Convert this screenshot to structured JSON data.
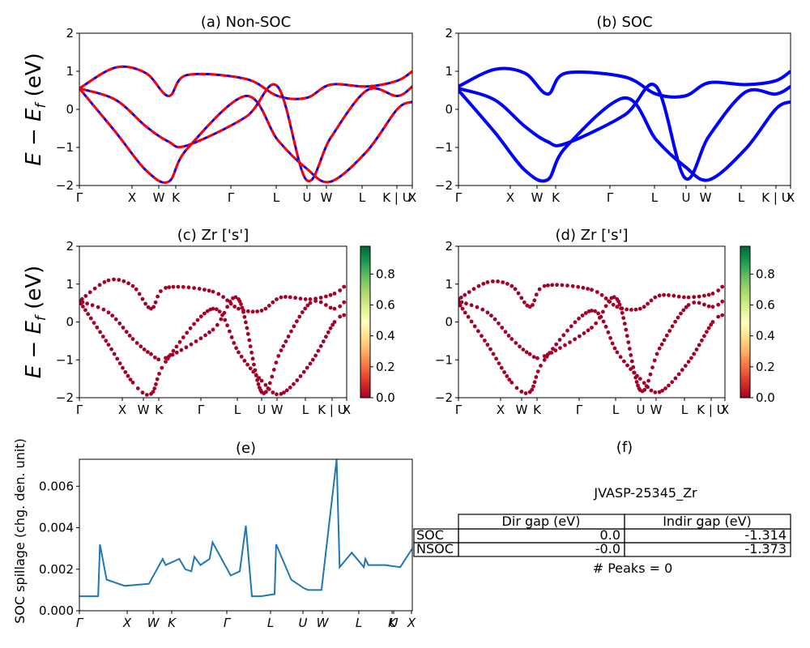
{
  "colors": {
    "nonsoc_solid": "#0000ff",
    "nonsoc_dash": "#ff0000",
    "soc": "#0000ff",
    "proj_points": "#a50026",
    "spillage": "#1f77b4"
  },
  "kpath": {
    "labels": [
      "Γ",
      "X",
      "W",
      "K",
      "Γ",
      "L",
      "U",
      "W",
      "L",
      "K | U",
      "X"
    ]
  },
  "chart_data": [
    {
      "type": "line",
      "title": "(a) Non-SOC",
      "ylabel": "E − E_f (eV)",
      "ylabel_main": "E − E",
      "ylabel_sub": "f",
      "ylabel_unit": "(eV)",
      "ylim": [
        -2,
        2
      ],
      "yticks": [
        "−2",
        "−1",
        "0",
        "1",
        "2"
      ],
      "xtick_labels": [
        "Γ",
        "X",
        "W",
        "K",
        "Γ",
        "L",
        "U",
        "W",
        "L",
        "K | U",
        "X"
      ],
      "x": [
        0,
        1.2,
        2.2,
        2.95,
        3.55,
        5.5,
        6.55,
        7.5,
        8.3,
        9.5,
        10.5,
        11.0
      ],
      "series": [
        {
          "values": [
            0.55,
            1.1,
            0.95,
            0.35,
            0.9,
            0.8,
            0.35,
            0.3,
            0.65,
            0.6,
            0.75,
            1.0
          ]
        },
        {
          "values": [
            0.55,
            -0.6,
            -1.6,
            -1.9,
            -1.05,
            0.35,
            -0.8,
            -1.55,
            -1.9,
            -1.1,
            0.0,
            0.2
          ]
        },
        {
          "values": [
            0.55,
            0.25,
            -0.45,
            -0.85,
            -0.95,
            -0.2,
            0.6,
            -1.85,
            -0.75,
            0.5,
            0.35,
            0.6
          ]
        }
      ]
    },
    {
      "type": "line",
      "title": "(b) SOC",
      "ylim": [
        -2,
        2
      ],
      "yticks": [
        "−2",
        "−1",
        "0",
        "1",
        "2"
      ],
      "xtick_labels": [
        "Γ",
        "X",
        "W",
        "K",
        "Γ",
        "L",
        "U",
        "W",
        "L",
        "K | U",
        "X"
      ],
      "x": [
        0,
        1.2,
        2.2,
        2.95,
        3.55,
        5.5,
        6.55,
        7.5,
        8.3,
        9.5,
        10.5,
        11.0
      ],
      "series": [
        {
          "values": [
            0.6,
            1.05,
            0.95,
            0.4,
            0.95,
            0.85,
            0.4,
            0.35,
            0.7,
            0.65,
            0.75,
            1.0
          ]
        },
        {
          "values": [
            0.5,
            -0.6,
            -1.6,
            -1.85,
            -1.0,
            0.3,
            -0.8,
            -1.5,
            -1.85,
            -1.05,
            0.0,
            0.2
          ]
        },
        {
          "values": [
            0.55,
            0.25,
            -0.45,
            -0.85,
            -0.9,
            -0.15,
            0.6,
            -1.8,
            -0.7,
            0.45,
            0.4,
            0.6
          ]
        }
      ]
    },
    {
      "type": "scatter",
      "title": "(c)  Zr ['s']",
      "ylabel": "E − E_f (eV)",
      "ylabel_main": "E − E",
      "ylabel_sub": "f",
      "ylabel_unit": "(eV)",
      "ylim": [
        -2,
        2
      ],
      "yticks": [
        "−2",
        "−1",
        "0",
        "1",
        "2"
      ],
      "xtick_labels": [
        "Γ",
        "X",
        "W",
        "K",
        "Γ",
        "L",
        "U",
        "W",
        "L",
        "K | U",
        "X"
      ],
      "colorbar": {
        "ticks": [
          "0.0",
          "0.2",
          "0.4",
          "0.6",
          "0.8"
        ],
        "range": [
          0,
          0.98
        ]
      },
      "x": [
        0,
        1.2,
        2.2,
        2.95,
        3.55,
        5.5,
        6.55,
        7.5,
        8.3,
        9.5,
        10.5,
        11.0
      ],
      "series": [
        {
          "values": [
            0.55,
            1.1,
            0.95,
            0.35,
            0.9,
            0.8,
            0.35,
            0.3,
            0.65,
            0.6,
            0.75,
            1.0
          ]
        },
        {
          "values": [
            0.55,
            -0.6,
            -1.6,
            -1.9,
            -1.05,
            0.35,
            -0.8,
            -1.55,
            -1.9,
            -1.1,
            0.0,
            0.2
          ]
        },
        {
          "values": [
            0.55,
            0.25,
            -0.45,
            -0.85,
            -0.95,
            -0.2,
            0.6,
            -1.85,
            -0.75,
            0.5,
            0.35,
            0.6
          ]
        }
      ]
    },
    {
      "type": "scatter",
      "title": "(d) Zr ['s']",
      "ylim": [
        -2,
        2
      ],
      "yticks": [
        "−2",
        "−1",
        "0",
        "1",
        "2"
      ],
      "xtick_labels": [
        "Γ",
        "X",
        "W",
        "K",
        "Γ",
        "L",
        "U",
        "W",
        "L",
        "K | U",
        "X"
      ],
      "colorbar": {
        "ticks": [
          "0.0",
          "0.2",
          "0.4",
          "0.6",
          "0.8"
        ],
        "range": [
          0,
          0.98
        ]
      },
      "x": [
        0,
        1.2,
        2.2,
        2.95,
        3.55,
        5.5,
        6.55,
        7.5,
        8.3,
        9.5,
        10.5,
        11.0
      ],
      "series": [
        {
          "values": [
            0.6,
            1.05,
            0.95,
            0.4,
            0.95,
            0.85,
            0.4,
            0.35,
            0.7,
            0.65,
            0.75,
            1.0
          ]
        },
        {
          "values": [
            0.5,
            -0.6,
            -1.6,
            -1.85,
            -1.0,
            0.3,
            -0.8,
            -1.5,
            -1.85,
            -1.05,
            0.0,
            0.2
          ]
        },
        {
          "values": [
            0.55,
            0.25,
            -0.45,
            -0.85,
            -0.9,
            -0.15,
            0.6,
            -1.8,
            -0.7,
            0.45,
            0.4,
            0.6
          ]
        }
      ]
    },
    {
      "type": "line",
      "title": "(e)",
      "ylabel": "SOC spillage (chg. den. unit)",
      "ylim": [
        0,
        0.0073
      ],
      "yticks": [
        "0.000",
        "0.002",
        "0.004",
        "0.006"
      ],
      "xtick_labels": [
        "Γ",
        "X",
        "W",
        "K",
        "Γ",
        "L",
        "U",
        "W",
        "L",
        "K",
        "U",
        "X"
      ],
      "x": [
        0,
        0.5,
        0.62,
        0.68,
        0.9,
        1.5,
        2.3,
        2.75,
        2.85,
        3.0,
        3.3,
        3.5,
        3.7,
        3.8,
        4.0,
        4.3,
        4.4,
        5.0,
        5.3,
        5.5,
        5.7,
        6.0,
        6.45,
        6.5,
        7.0,
        7.4,
        7.55,
        8.0,
        8.5,
        8.6,
        9.0,
        9.4,
        9.45,
        9.55,
        10.1,
        10.6,
        11.0
      ],
      "series": [
        {
          "name": "",
          "values": [
            0.0007,
            0.0007,
            0.0007,
            0.0032,
            0.0015,
            0.0012,
            0.0013,
            0.0025,
            0.0022,
            0.0023,
            0.0025,
            0.002,
            0.0019,
            0.0026,
            0.0022,
            0.0025,
            0.0033,
            0.0017,
            0.0019,
            0.0041,
            0.0007,
            0.0007,
            0.0008,
            0.0032,
            0.0015,
            0.0011,
            0.001,
            0.001,
            0.0073,
            0.0021,
            0.0028,
            0.0021,
            0.0025,
            0.0022,
            0.0022,
            0.0021,
            0.003
          ]
        }
      ]
    }
  ],
  "table": {
    "title": "(f)",
    "material": "JVASP-25345_Zr",
    "headers": [
      "",
      "Dir gap (eV)",
      "Indir gap (eV)"
    ],
    "rows": [
      {
        "label": "SOC",
        "dir": "0.0",
        "indir": "-1.314"
      },
      {
        "label": "NSOC",
        "dir": "-0.0",
        "indir": "-1.373"
      }
    ],
    "peaks": "# Peaks = 0"
  }
}
